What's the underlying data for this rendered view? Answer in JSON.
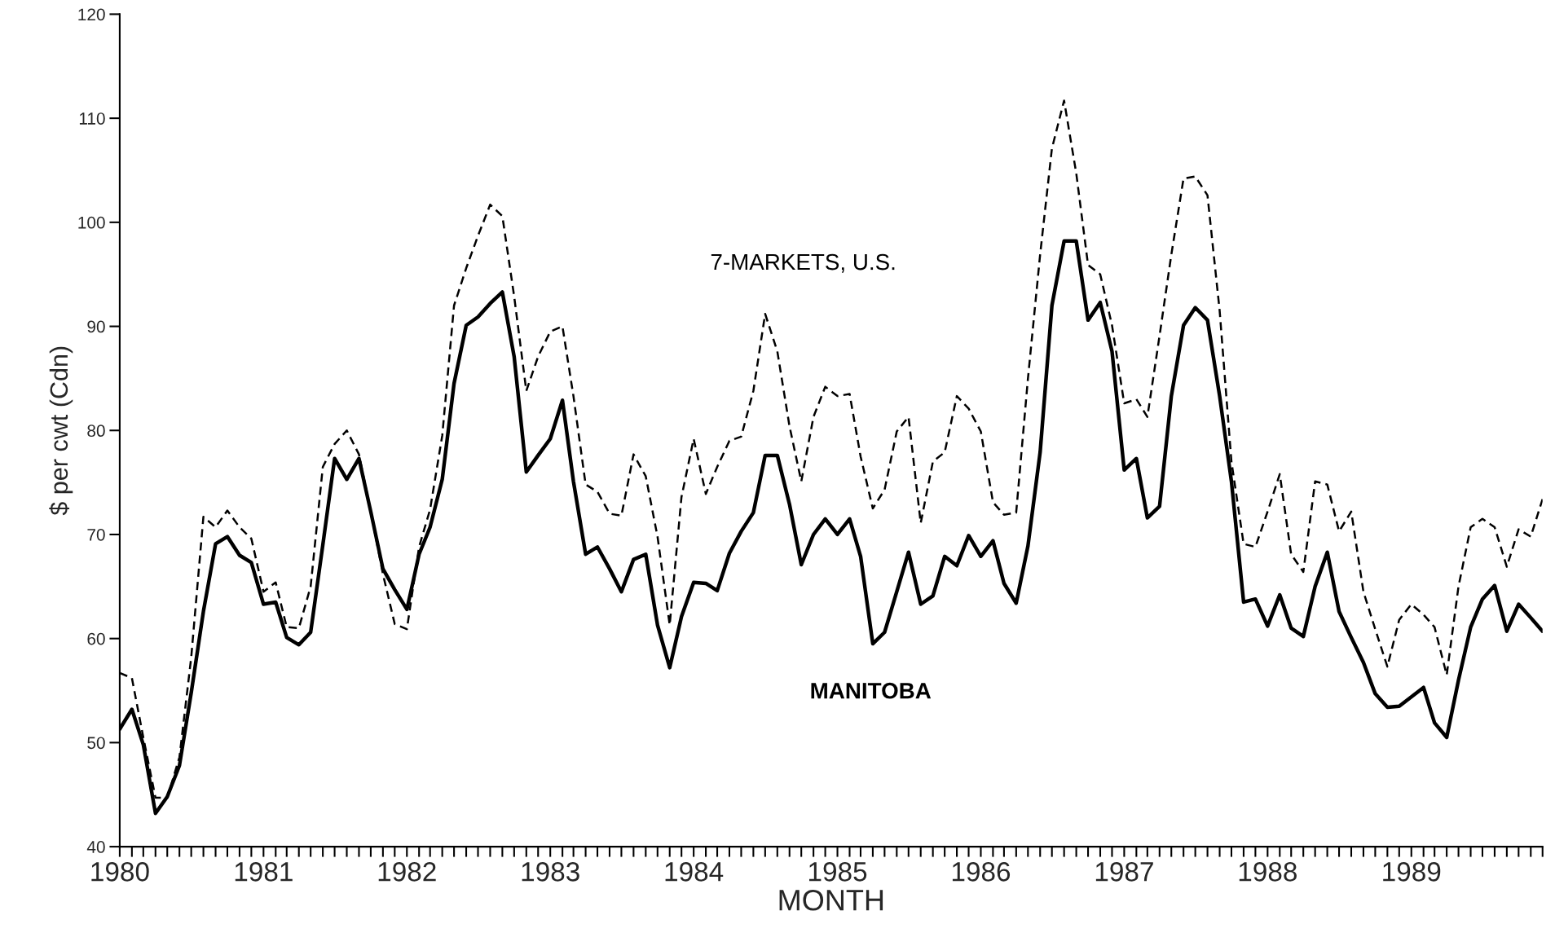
{
  "chart_data": {
    "type": "line",
    "xlabel": "MONTH",
    "ylabel": "$ per cwt (Cdn)",
    "x": [
      "1980-01",
      "1980-02",
      "1980-03",
      "1980-04",
      "1980-05",
      "1980-06",
      "1980-07",
      "1980-08",
      "1980-09",
      "1980-10",
      "1980-11",
      "1980-12",
      "1981-01",
      "1981-02",
      "1981-03",
      "1981-04",
      "1981-05",
      "1981-06",
      "1981-07",
      "1981-08",
      "1981-09",
      "1981-10",
      "1981-11",
      "1981-12",
      "1982-01",
      "1982-02",
      "1982-03",
      "1982-04",
      "1982-05",
      "1982-06",
      "1982-07",
      "1982-08",
      "1982-09",
      "1982-10",
      "1982-11",
      "1982-12",
      "1983-01",
      "1983-02",
      "1983-03",
      "1983-04",
      "1983-05",
      "1983-06",
      "1983-07",
      "1983-08",
      "1983-09",
      "1983-10",
      "1983-11",
      "1983-12",
      "1984-01",
      "1984-02",
      "1984-03",
      "1984-04",
      "1984-05",
      "1984-06",
      "1984-07",
      "1984-08",
      "1984-09",
      "1984-10",
      "1984-11",
      "1984-12",
      "1985-01",
      "1985-02",
      "1985-03",
      "1985-04",
      "1985-05",
      "1985-06",
      "1985-07",
      "1985-08",
      "1985-09",
      "1985-10",
      "1985-11",
      "1985-12",
      "1986-01",
      "1986-02",
      "1986-03",
      "1986-04",
      "1986-05",
      "1986-06",
      "1986-07",
      "1986-08",
      "1986-09",
      "1986-10",
      "1986-11",
      "1986-12",
      "1987-01",
      "1987-02",
      "1987-03",
      "1987-04",
      "1987-05",
      "1987-06",
      "1987-07",
      "1987-08",
      "1987-09",
      "1987-10",
      "1987-11",
      "1987-12",
      "1988-01",
      "1988-02",
      "1988-03",
      "1988-04",
      "1988-05",
      "1988-06",
      "1988-07",
      "1988-08",
      "1988-09",
      "1988-10",
      "1988-11",
      "1988-12",
      "1989-01",
      "1989-02",
      "1989-03",
      "1989-04",
      "1989-05",
      "1989-06",
      "1989-07",
      "1989-08",
      "1989-09",
      "1989-10",
      "1989-11",
      "1989-12"
    ],
    "series": [
      {
        "name": "7-MARKETS, U.S.",
        "color": "#000000",
        "line_style": "dashed",
        "values": [
          56.7,
          56.2,
          50.5,
          44.7,
          44.7,
          48.6,
          58.2,
          71.7,
          70.7,
          72.3,
          70.7,
          69.6,
          64.5,
          65.4,
          61.1,
          61.0,
          65.0,
          76.5,
          78.7,
          80.0,
          77.7,
          72.2,
          66.2,
          61.4,
          60.9,
          68.8,
          72.4,
          79.5,
          92.0,
          95.6,
          98.7,
          101.7,
          100.6,
          92.9,
          83.8,
          87.1,
          89.5,
          90.0,
          83.3,
          74.8,
          74.1,
          72.0,
          71.8,
          77.7,
          75.6,
          69.8,
          61.3,
          73.6,
          79.2,
          73.9,
          76.5,
          79.0,
          79.4,
          83.8,
          91.2,
          87.6,
          80.4,
          75.1,
          81.3,
          84.2,
          83.3,
          83.5,
          77.5,
          72.5,
          74.3,
          79.9,
          81.3,
          71.1,
          77.0,
          77.9,
          83.3,
          82.1,
          79.9,
          73.1,
          71.9,
          72.1,
          85.0,
          96.9,
          107.1,
          111.7,
          104.7,
          95.9,
          95.0,
          90.1,
          82.6,
          83.0,
          81.3,
          89.1,
          96.9,
          104.2,
          104.4,
          102.6,
          91.5,
          77.0,
          69.1,
          68.8,
          72.2,
          75.8,
          68.1,
          66.4,
          75.1,
          74.8,
          70.3,
          72.2,
          64.5,
          60.9,
          57.3,
          61.8,
          63.3,
          62.3,
          61.1,
          56.5,
          65.0,
          70.7,
          71.5,
          70.7,
          66.9,
          70.5,
          69.8,
          73.4
        ]
      },
      {
        "name": "MANITOBA",
        "color": "#000000",
        "line_style": "solid",
        "values": [
          51.3,
          53.2,
          49.8,
          43.2,
          44.8,
          47.8,
          54.8,
          62.6,
          69.1,
          69.8,
          68.0,
          67.3,
          63.3,
          63.5,
          60.1,
          59.4,
          60.6,
          69.0,
          77.3,
          75.3,
          77.3,
          72.2,
          66.7,
          64.7,
          62.8,
          68.1,
          70.7,
          75.3,
          84.5,
          90.1,
          90.9,
          92.2,
          93.3,
          87.1,
          76.0,
          77.6,
          79.2,
          82.9,
          75.1,
          68.1,
          68.8,
          66.7,
          64.5,
          67.6,
          68.1,
          61.3,
          57.2,
          62.1,
          65.4,
          65.3,
          64.6,
          68.2,
          70.3,
          72.1,
          77.6,
          77.6,
          72.9,
          67.1,
          70.0,
          71.5,
          70.0,
          71.5,
          67.9,
          59.5,
          60.6,
          64.5,
          68.3,
          63.3,
          64.1,
          67.9,
          67.0,
          69.9,
          67.9,
          69.4,
          65.3,
          63.4,
          68.9,
          77.9,
          92.0,
          98.2,
          98.2,
          90.6,
          92.3,
          87.6,
          76.2,
          77.3,
          71.6,
          72.7,
          83.3,
          90.1,
          91.8,
          90.6,
          83.3,
          75.1,
          63.5,
          63.8,
          61.2,
          64.2,
          61.0,
          60.2,
          65.0,
          68.3,
          62.6,
          60.1,
          57.7,
          54.7,
          53.4,
          53.5,
          54.4,
          55.3,
          51.9,
          50.5,
          56.0,
          61.1,
          63.8,
          65.1,
          60.7,
          63.3,
          62.0,
          60.7
        ]
      }
    ],
    "xlim": [
      "1980-01",
      "1989-12"
    ],
    "xticks": [
      {
        "value": "1980-01",
        "label": "1980"
      },
      {
        "value": "1980-02",
        "label": null
      },
      {
        "value": "1980-03",
        "label": null
      },
      {
        "value": "1980-04",
        "label": null
      },
      {
        "value": "1980-05",
        "label": null
      },
      {
        "value": "1980-06",
        "label": null
      },
      {
        "value": "1980-07",
        "label": null
      },
      {
        "value": "1980-08",
        "label": null
      },
      {
        "value": "1980-09",
        "label": null
      },
      {
        "value": "1980-10",
        "label": null
      },
      {
        "value": "1980-11",
        "label": null
      },
      {
        "value": "1980-12",
        "label": null
      },
      {
        "value": "1981-01",
        "label": "1981"
      },
      {
        "value": "1981-02",
        "label": null
      },
      {
        "value": "1981-03",
        "label": null
      },
      {
        "value": "1981-04",
        "label": null
      },
      {
        "value": "1981-05",
        "label": null
      },
      {
        "value": "1981-06",
        "label": null
      },
      {
        "value": "1981-07",
        "label": null
      },
      {
        "value": "1981-08",
        "label": null
      },
      {
        "value": "1981-09",
        "label": null
      },
      {
        "value": "1981-10",
        "label": null
      },
      {
        "value": "1981-11",
        "label": null
      },
      {
        "value": "1981-12",
        "label": null
      },
      {
        "value": "1982-01",
        "label": "1982"
      },
      {
        "value": "1982-02",
        "label": null
      },
      {
        "value": "1982-03",
        "label": null
      },
      {
        "value": "1982-04",
        "label": null
      },
      {
        "value": "1982-05",
        "label": null
      },
      {
        "value": "1982-06",
        "label": null
      },
      {
        "value": "1982-07",
        "label": null
      },
      {
        "value": "1982-08",
        "label": null
      },
      {
        "value": "1982-09",
        "label": null
      },
      {
        "value": "1982-10",
        "label": null
      },
      {
        "value": "1982-11",
        "label": null
      },
      {
        "value": "1982-12",
        "label": null
      },
      {
        "value": "1983-01",
        "label": "1983"
      },
      {
        "value": "1983-02",
        "label": null
      },
      {
        "value": "1983-03",
        "label": null
      },
      {
        "value": "1983-04",
        "label": null
      },
      {
        "value": "1983-05",
        "label": null
      },
      {
        "value": "1983-06",
        "label": null
      },
      {
        "value": "1983-07",
        "label": null
      },
      {
        "value": "1983-08",
        "label": null
      },
      {
        "value": "1983-09",
        "label": null
      },
      {
        "value": "1983-10",
        "label": null
      },
      {
        "value": "1983-11",
        "label": null
      },
      {
        "value": "1983-12",
        "label": null
      },
      {
        "value": "1984-01",
        "label": "1984"
      },
      {
        "value": "1984-02",
        "label": null
      },
      {
        "value": "1984-03",
        "label": null
      },
      {
        "value": "1984-04",
        "label": null
      },
      {
        "value": "1984-05",
        "label": null
      },
      {
        "value": "1984-06",
        "label": null
      },
      {
        "value": "1984-07",
        "label": null
      },
      {
        "value": "1984-08",
        "label": null
      },
      {
        "value": "1984-09",
        "label": null
      },
      {
        "value": "1984-10",
        "label": null
      },
      {
        "value": "1984-11",
        "label": null
      },
      {
        "value": "1984-12",
        "label": null
      },
      {
        "value": "1985-01",
        "label": "1985"
      },
      {
        "value": "1985-02",
        "label": null
      },
      {
        "value": "1985-03",
        "label": null
      },
      {
        "value": "1985-04",
        "label": null
      },
      {
        "value": "1985-05",
        "label": null
      },
      {
        "value": "1985-06",
        "label": null
      },
      {
        "value": "1985-07",
        "label": null
      },
      {
        "value": "1985-08",
        "label": null
      },
      {
        "value": "1985-09",
        "label": null
      },
      {
        "value": "1985-10",
        "label": null
      },
      {
        "value": "1985-11",
        "label": null
      },
      {
        "value": "1985-12",
        "label": null
      },
      {
        "value": "1986-01",
        "label": "1986"
      },
      {
        "value": "1986-02",
        "label": null
      },
      {
        "value": "1986-03",
        "label": null
      },
      {
        "value": "1986-04",
        "label": null
      },
      {
        "value": "1986-05",
        "label": null
      },
      {
        "value": "1986-06",
        "label": null
      },
      {
        "value": "1986-07",
        "label": null
      },
      {
        "value": "1986-08",
        "label": null
      },
      {
        "value": "1986-09",
        "label": null
      },
      {
        "value": "1986-10",
        "label": null
      },
      {
        "value": "1986-11",
        "label": null
      },
      {
        "value": "1986-12",
        "label": null
      },
      {
        "value": "1987-01",
        "label": "1987"
      },
      {
        "value": "1987-02",
        "label": null
      },
      {
        "value": "1987-03",
        "label": null
      },
      {
        "value": "1987-04",
        "label": null
      },
      {
        "value": "1987-05",
        "label": null
      },
      {
        "value": "1987-06",
        "label": null
      },
      {
        "value": "1987-07",
        "label": null
      },
      {
        "value": "1987-08",
        "label": null
      },
      {
        "value": "1987-09",
        "label": null
      },
      {
        "value": "1987-10",
        "label": null
      },
      {
        "value": "1987-11",
        "label": null
      },
      {
        "value": "1987-12",
        "label": null
      },
      {
        "value": "1988-01",
        "label": "1988"
      },
      {
        "value": "1988-02",
        "label": null
      },
      {
        "value": "1988-03",
        "label": null
      },
      {
        "value": "1988-04",
        "label": null
      },
      {
        "value": "1988-05",
        "label": null
      },
      {
        "value": "1988-06",
        "label": null
      },
      {
        "value": "1988-07",
        "label": null
      },
      {
        "value": "1988-08",
        "label": null
      },
      {
        "value": "1988-09",
        "label": null
      },
      {
        "value": "1988-10",
        "label": null
      },
      {
        "value": "1988-11",
        "label": null
      },
      {
        "value": "1988-12",
        "label": null
      },
      {
        "value": "1989-01",
        "label": "1989"
      },
      {
        "value": "1989-02",
        "label": null
      },
      {
        "value": "1989-03",
        "label": null
      },
      {
        "value": "1989-04",
        "label": null
      },
      {
        "value": "1989-05",
        "label": null
      },
      {
        "value": "1989-06",
        "label": null
      },
      {
        "value": "1989-07",
        "label": null
      },
      {
        "value": "1989-08",
        "label": null
      },
      {
        "value": "1989-09",
        "label": null
      },
      {
        "value": "1989-10",
        "label": null
      },
      {
        "value": "1989-11",
        "label": null
      },
      {
        "value": "1989-12",
        "label": null
      }
    ],
    "ylim": [
      40,
      120
    ],
    "yticks": [
      40,
      50,
      60,
      70,
      80,
      90,
      100,
      110,
      120
    ]
  }
}
